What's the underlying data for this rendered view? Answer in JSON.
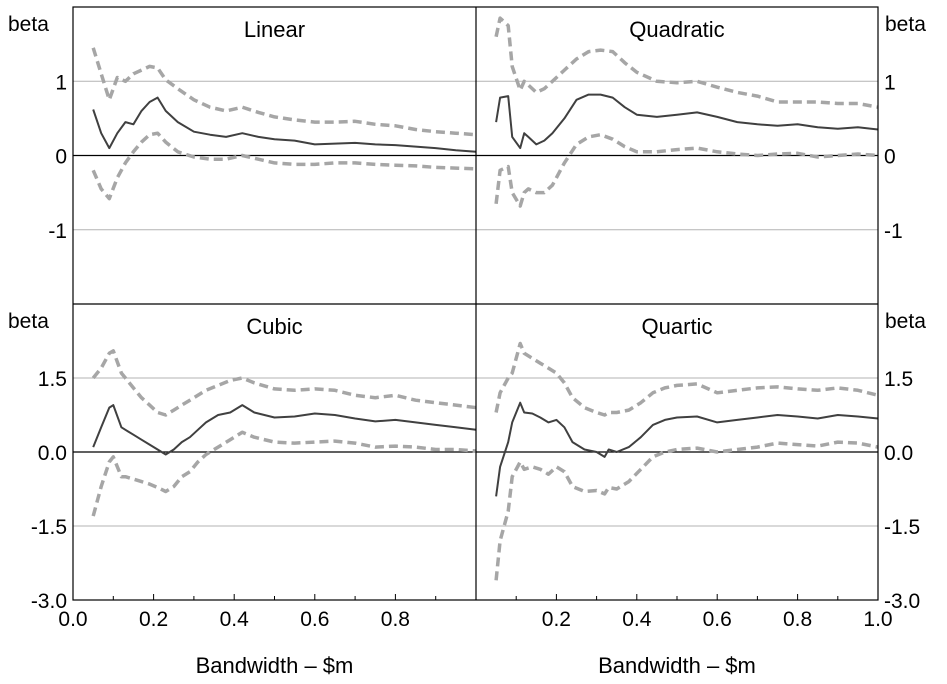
{
  "chart_data": {
    "type": "line",
    "panels": [
      {
        "title": "Linear",
        "ylabel": "beta",
        "ylim": [
          -2,
          2
        ],
        "yticks": [
          {
            "value": 1,
            "label": "1"
          },
          {
            "value": 0,
            "label": "0"
          },
          {
            "value": -1,
            "label": "-1"
          }
        ],
        "xlim": [
          0,
          1
        ],
        "series": [
          {
            "role": "estimate",
            "x": [
              0.05,
              0.07,
              0.09,
              0.11,
              0.13,
              0.15,
              0.17,
              0.19,
              0.21,
              0.23,
              0.26,
              0.3,
              0.34,
              0.38,
              0.42,
              0.46,
              0.5,
              0.55,
              0.6,
              0.65,
              0.7,
              0.75,
              0.8,
              0.85,
              0.9,
              0.95,
              1.0
            ],
            "y": [
              0.62,
              0.3,
              0.1,
              0.3,
              0.45,
              0.42,
              0.6,
              0.72,
              0.78,
              0.6,
              0.45,
              0.32,
              0.28,
              0.25,
              0.3,
              0.25,
              0.22,
              0.2,
              0.15,
              0.16,
              0.17,
              0.15,
              0.14,
              0.12,
              0.1,
              0.07,
              0.05
            ]
          },
          {
            "role": "upper band",
            "x": [
              0.05,
              0.07,
              0.09,
              0.11,
              0.13,
              0.15,
              0.17,
              0.19,
              0.21,
              0.23,
              0.26,
              0.3,
              0.34,
              0.38,
              0.42,
              0.46,
              0.5,
              0.55,
              0.6,
              0.65,
              0.7,
              0.75,
              0.8,
              0.85,
              0.9,
              0.95,
              1.0
            ],
            "y": [
              1.45,
              1.1,
              0.75,
              1.05,
              1.0,
              1.1,
              1.15,
              1.2,
              1.18,
              1.02,
              0.9,
              0.75,
              0.65,
              0.6,
              0.65,
              0.58,
              0.52,
              0.48,
              0.45,
              0.45,
              0.46,
              0.42,
              0.4,
              0.35,
              0.32,
              0.3,
              0.28
            ]
          },
          {
            "role": "lower band",
            "x": [
              0.05,
              0.07,
              0.09,
              0.11,
              0.13,
              0.15,
              0.17,
              0.19,
              0.21,
              0.23,
              0.26,
              0.3,
              0.34,
              0.38,
              0.42,
              0.46,
              0.5,
              0.55,
              0.6,
              0.65,
              0.7,
              0.75,
              0.8,
              0.85,
              0.9,
              0.95,
              1.0
            ],
            "y": [
              -0.2,
              -0.45,
              -0.58,
              -0.3,
              -0.1,
              0.05,
              0.18,
              0.28,
              0.3,
              0.18,
              0.05,
              -0.02,
              -0.05,
              -0.05,
              0.0,
              -0.05,
              -0.1,
              -0.12,
              -0.12,
              -0.1,
              -0.1,
              -0.12,
              -0.13,
              -0.14,
              -0.16,
              -0.17,
              -0.18
            ]
          }
        ]
      },
      {
        "title": "Quadratic",
        "ylabel": "beta",
        "ylim": [
          -2,
          2
        ],
        "yticks": [
          {
            "value": 1,
            "label": "1"
          },
          {
            "value": 0,
            "label": "0"
          },
          {
            "value": -1,
            "label": "-1"
          }
        ],
        "xlim": [
          0,
          1
        ],
        "series": [
          {
            "role": "estimate",
            "x": [
              0.05,
              0.06,
              0.08,
              0.09,
              0.11,
              0.12,
              0.13,
              0.15,
              0.17,
              0.19,
              0.22,
              0.25,
              0.28,
              0.31,
              0.34,
              0.37,
              0.4,
              0.45,
              0.5,
              0.55,
              0.6,
              0.65,
              0.7,
              0.75,
              0.8,
              0.85,
              0.9,
              0.95,
              1.0
            ],
            "y": [
              0.45,
              0.78,
              0.8,
              0.25,
              0.1,
              0.3,
              0.25,
              0.15,
              0.2,
              0.3,
              0.5,
              0.75,
              0.82,
              0.82,
              0.78,
              0.65,
              0.55,
              0.52,
              0.55,
              0.58,
              0.52,
              0.45,
              0.42,
              0.4,
              0.42,
              0.38,
              0.36,
              0.38,
              0.35
            ]
          },
          {
            "role": "upper band",
            "x": [
              0.05,
              0.06,
              0.08,
              0.09,
              0.11,
              0.12,
              0.13,
              0.15,
              0.17,
              0.19,
              0.22,
              0.25,
              0.28,
              0.31,
              0.34,
              0.37,
              0.4,
              0.45,
              0.5,
              0.55,
              0.6,
              0.65,
              0.7,
              0.75,
              0.8,
              0.85,
              0.9,
              0.95,
              1.0
            ],
            "y": [
              1.6,
              1.85,
              1.75,
              1.2,
              0.88,
              1.0,
              0.95,
              0.85,
              0.9,
              1.0,
              1.15,
              1.3,
              1.4,
              1.42,
              1.4,
              1.25,
              1.12,
              1.0,
              0.98,
              1.0,
              0.92,
              0.85,
              0.8,
              0.72,
              0.72,
              0.72,
              0.7,
              0.7,
              0.65
            ]
          },
          {
            "role": "lower band",
            "x": [
              0.05,
              0.06,
              0.08,
              0.09,
              0.11,
              0.12,
              0.13,
              0.15,
              0.17,
              0.19,
              0.22,
              0.25,
              0.28,
              0.31,
              0.34,
              0.37,
              0.4,
              0.45,
              0.5,
              0.55,
              0.6,
              0.65,
              0.7,
              0.75,
              0.8,
              0.85,
              0.9,
              0.95,
              1.0
            ],
            "y": [
              -0.65,
              -0.2,
              -0.15,
              -0.5,
              -0.68,
              -0.5,
              -0.45,
              -0.5,
              -0.5,
              -0.4,
              -0.1,
              0.15,
              0.25,
              0.28,
              0.22,
              0.12,
              0.05,
              0.05,
              0.08,
              0.1,
              0.05,
              0.02,
              0.0,
              0.02,
              0.03,
              -0.02,
              0.0,
              0.02,
              0.0
            ]
          }
        ]
      },
      {
        "title": "Cubic",
        "ylabel": "beta",
        "ylim": [
          -3,
          3
        ],
        "yticks": [
          {
            "value": 1.5,
            "label": "1.5"
          },
          {
            "value": 0,
            "label": "0.0"
          },
          {
            "value": -1.5,
            "label": "-1.5"
          },
          {
            "value": -3,
            "label": "-3.0"
          }
        ],
        "xlim": [
          0,
          1
        ],
        "xticks": [
          {
            "value": 0.0,
            "label": "0.0"
          },
          {
            "value": 0.2,
            "label": "0.2"
          },
          {
            "value": 0.4,
            "label": "0.4"
          },
          {
            "value": 0.6,
            "label": "0.6"
          },
          {
            "value": 0.8,
            "label": "0.8"
          }
        ],
        "xlabel": "Bandwidth – $m",
        "series": [
          {
            "role": "estimate",
            "x": [
              0.05,
              0.07,
              0.09,
              0.1,
              0.12,
              0.13,
              0.15,
              0.17,
              0.19,
              0.21,
              0.23,
              0.25,
              0.27,
              0.29,
              0.31,
              0.33,
              0.36,
              0.39,
              0.42,
              0.45,
              0.5,
              0.55,
              0.6,
              0.65,
              0.7,
              0.75,
              0.8,
              0.85,
              0.9,
              0.95,
              1.0
            ],
            "y": [
              0.1,
              0.5,
              0.9,
              0.95,
              0.5,
              0.45,
              0.35,
              0.25,
              0.15,
              0.05,
              -0.05,
              0.05,
              0.2,
              0.3,
              0.45,
              0.6,
              0.75,
              0.8,
              0.95,
              0.8,
              0.7,
              0.72,
              0.78,
              0.75,
              0.68,
              0.62,
              0.65,
              0.6,
              0.55,
              0.5,
              0.45
            ]
          },
          {
            "role": "upper band",
            "x": [
              0.05,
              0.07,
              0.09,
              0.1,
              0.12,
              0.13,
              0.15,
              0.17,
              0.19,
              0.21,
              0.23,
              0.25,
              0.27,
              0.29,
              0.31,
              0.33,
              0.36,
              0.39,
              0.42,
              0.45,
              0.5,
              0.55,
              0.6,
              0.65,
              0.7,
              0.75,
              0.8,
              0.85,
              0.9,
              0.95,
              1.0
            ],
            "y": [
              1.5,
              1.7,
              2.0,
              2.05,
              1.6,
              1.5,
              1.3,
              1.1,
              0.95,
              0.8,
              0.75,
              0.85,
              0.95,
              1.05,
              1.15,
              1.25,
              1.35,
              1.45,
              1.5,
              1.4,
              1.28,
              1.25,
              1.28,
              1.25,
              1.15,
              1.1,
              1.15,
              1.05,
              1.0,
              0.95,
              0.9
            ]
          },
          {
            "role": "lower band",
            "x": [
              0.05,
              0.07,
              0.09,
              0.1,
              0.12,
              0.13,
              0.15,
              0.17,
              0.19,
              0.21,
              0.23,
              0.25,
              0.27,
              0.29,
              0.31,
              0.33,
              0.36,
              0.39,
              0.42,
              0.45,
              0.5,
              0.55,
              0.6,
              0.65,
              0.7,
              0.75,
              0.8,
              0.85,
              0.9,
              0.95,
              1.0
            ],
            "y": [
              -1.3,
              -0.7,
              -0.2,
              -0.1,
              -0.5,
              -0.5,
              -0.55,
              -0.6,
              -0.65,
              -0.72,
              -0.8,
              -0.7,
              -0.5,
              -0.4,
              -0.2,
              -0.05,
              0.1,
              0.25,
              0.4,
              0.3,
              0.2,
              0.18,
              0.2,
              0.22,
              0.18,
              0.1,
              0.12,
              0.1,
              0.05,
              0.05,
              0.02
            ]
          }
        ]
      },
      {
        "title": "Quartic",
        "ylabel": "beta",
        "ylim": [
          -3,
          3
        ],
        "yticks": [
          {
            "value": 1.5,
            "label": "1.5"
          },
          {
            "value": 0,
            "label": "0.0"
          },
          {
            "value": -1.5,
            "label": "-1.5"
          },
          {
            "value": -3,
            "label": "-3.0"
          }
        ],
        "xlim": [
          0,
          1
        ],
        "xticks": [
          {
            "value": 0.2,
            "label": "0.2"
          },
          {
            "value": 0.4,
            "label": "0.4"
          },
          {
            "value": 0.6,
            "label": "0.6"
          },
          {
            "value": 0.8,
            "label": "0.8"
          },
          {
            "value": 1.0,
            "label": "1.0"
          }
        ],
        "xlabel": "Bandwidth – $m",
        "series": [
          {
            "role": "estimate",
            "x": [
              0.05,
              0.06,
              0.08,
              0.09,
              0.11,
              0.12,
              0.14,
              0.16,
              0.18,
              0.2,
              0.22,
              0.24,
              0.27,
              0.3,
              0.32,
              0.33,
              0.35,
              0.38,
              0.41,
              0.44,
              0.47,
              0.5,
              0.55,
              0.6,
              0.65,
              0.7,
              0.75,
              0.8,
              0.85,
              0.9,
              0.95,
              1.0
            ],
            "y": [
              -0.9,
              -0.3,
              0.2,
              0.6,
              1.0,
              0.8,
              0.78,
              0.7,
              0.6,
              0.65,
              0.5,
              0.2,
              0.05,
              0.0,
              -0.1,
              0.05,
              0.0,
              0.1,
              0.3,
              0.55,
              0.65,
              0.7,
              0.72,
              0.6,
              0.65,
              0.7,
              0.75,
              0.72,
              0.68,
              0.75,
              0.72,
              0.68
            ]
          },
          {
            "role": "upper band",
            "x": [
              0.05,
              0.06,
              0.08,
              0.09,
              0.11,
              0.12,
              0.14,
              0.16,
              0.18,
              0.2,
              0.22,
              0.24,
              0.27,
              0.3,
              0.32,
              0.33,
              0.35,
              0.38,
              0.41,
              0.44,
              0.47,
              0.5,
              0.55,
              0.6,
              0.65,
              0.7,
              0.75,
              0.8,
              0.85,
              0.9,
              0.95,
              1.0
            ],
            "y": [
              0.8,
              1.2,
              1.5,
              1.6,
              2.2,
              2.0,
              1.9,
              1.8,
              1.7,
              1.6,
              1.4,
              1.1,
              0.9,
              0.8,
              0.75,
              0.8,
              0.8,
              0.85,
              1.0,
              1.2,
              1.3,
              1.35,
              1.38,
              1.2,
              1.25,
              1.3,
              1.32,
              1.28,
              1.25,
              1.3,
              1.25,
              1.15
            ]
          },
          {
            "role": "lower band",
            "x": [
              0.05,
              0.06,
              0.08,
              0.09,
              0.11,
              0.12,
              0.14,
              0.16,
              0.18,
              0.2,
              0.22,
              0.24,
              0.27,
              0.3,
              0.32,
              0.33,
              0.35,
              0.38,
              0.41,
              0.44,
              0.47,
              0.5,
              0.55,
              0.6,
              0.65,
              0.7,
              0.75,
              0.8,
              0.85,
              0.9,
              0.95,
              1.0
            ],
            "y": [
              -2.6,
              -1.8,
              -1.2,
              -0.5,
              -0.2,
              -0.35,
              -0.3,
              -0.35,
              -0.45,
              -0.3,
              -0.4,
              -0.7,
              -0.8,
              -0.78,
              -0.85,
              -0.72,
              -0.75,
              -0.6,
              -0.35,
              -0.1,
              0.0,
              0.05,
              0.08,
              0.0,
              0.05,
              0.1,
              0.18,
              0.15,
              0.12,
              0.2,
              0.18,
              0.1
            ]
          }
        ]
      }
    ]
  },
  "colors": {
    "estimate": "#404040",
    "band": "#a6a6a6",
    "grid": "#b3b3b3",
    "zero_line": "#000000",
    "frame": "#000000"
  }
}
